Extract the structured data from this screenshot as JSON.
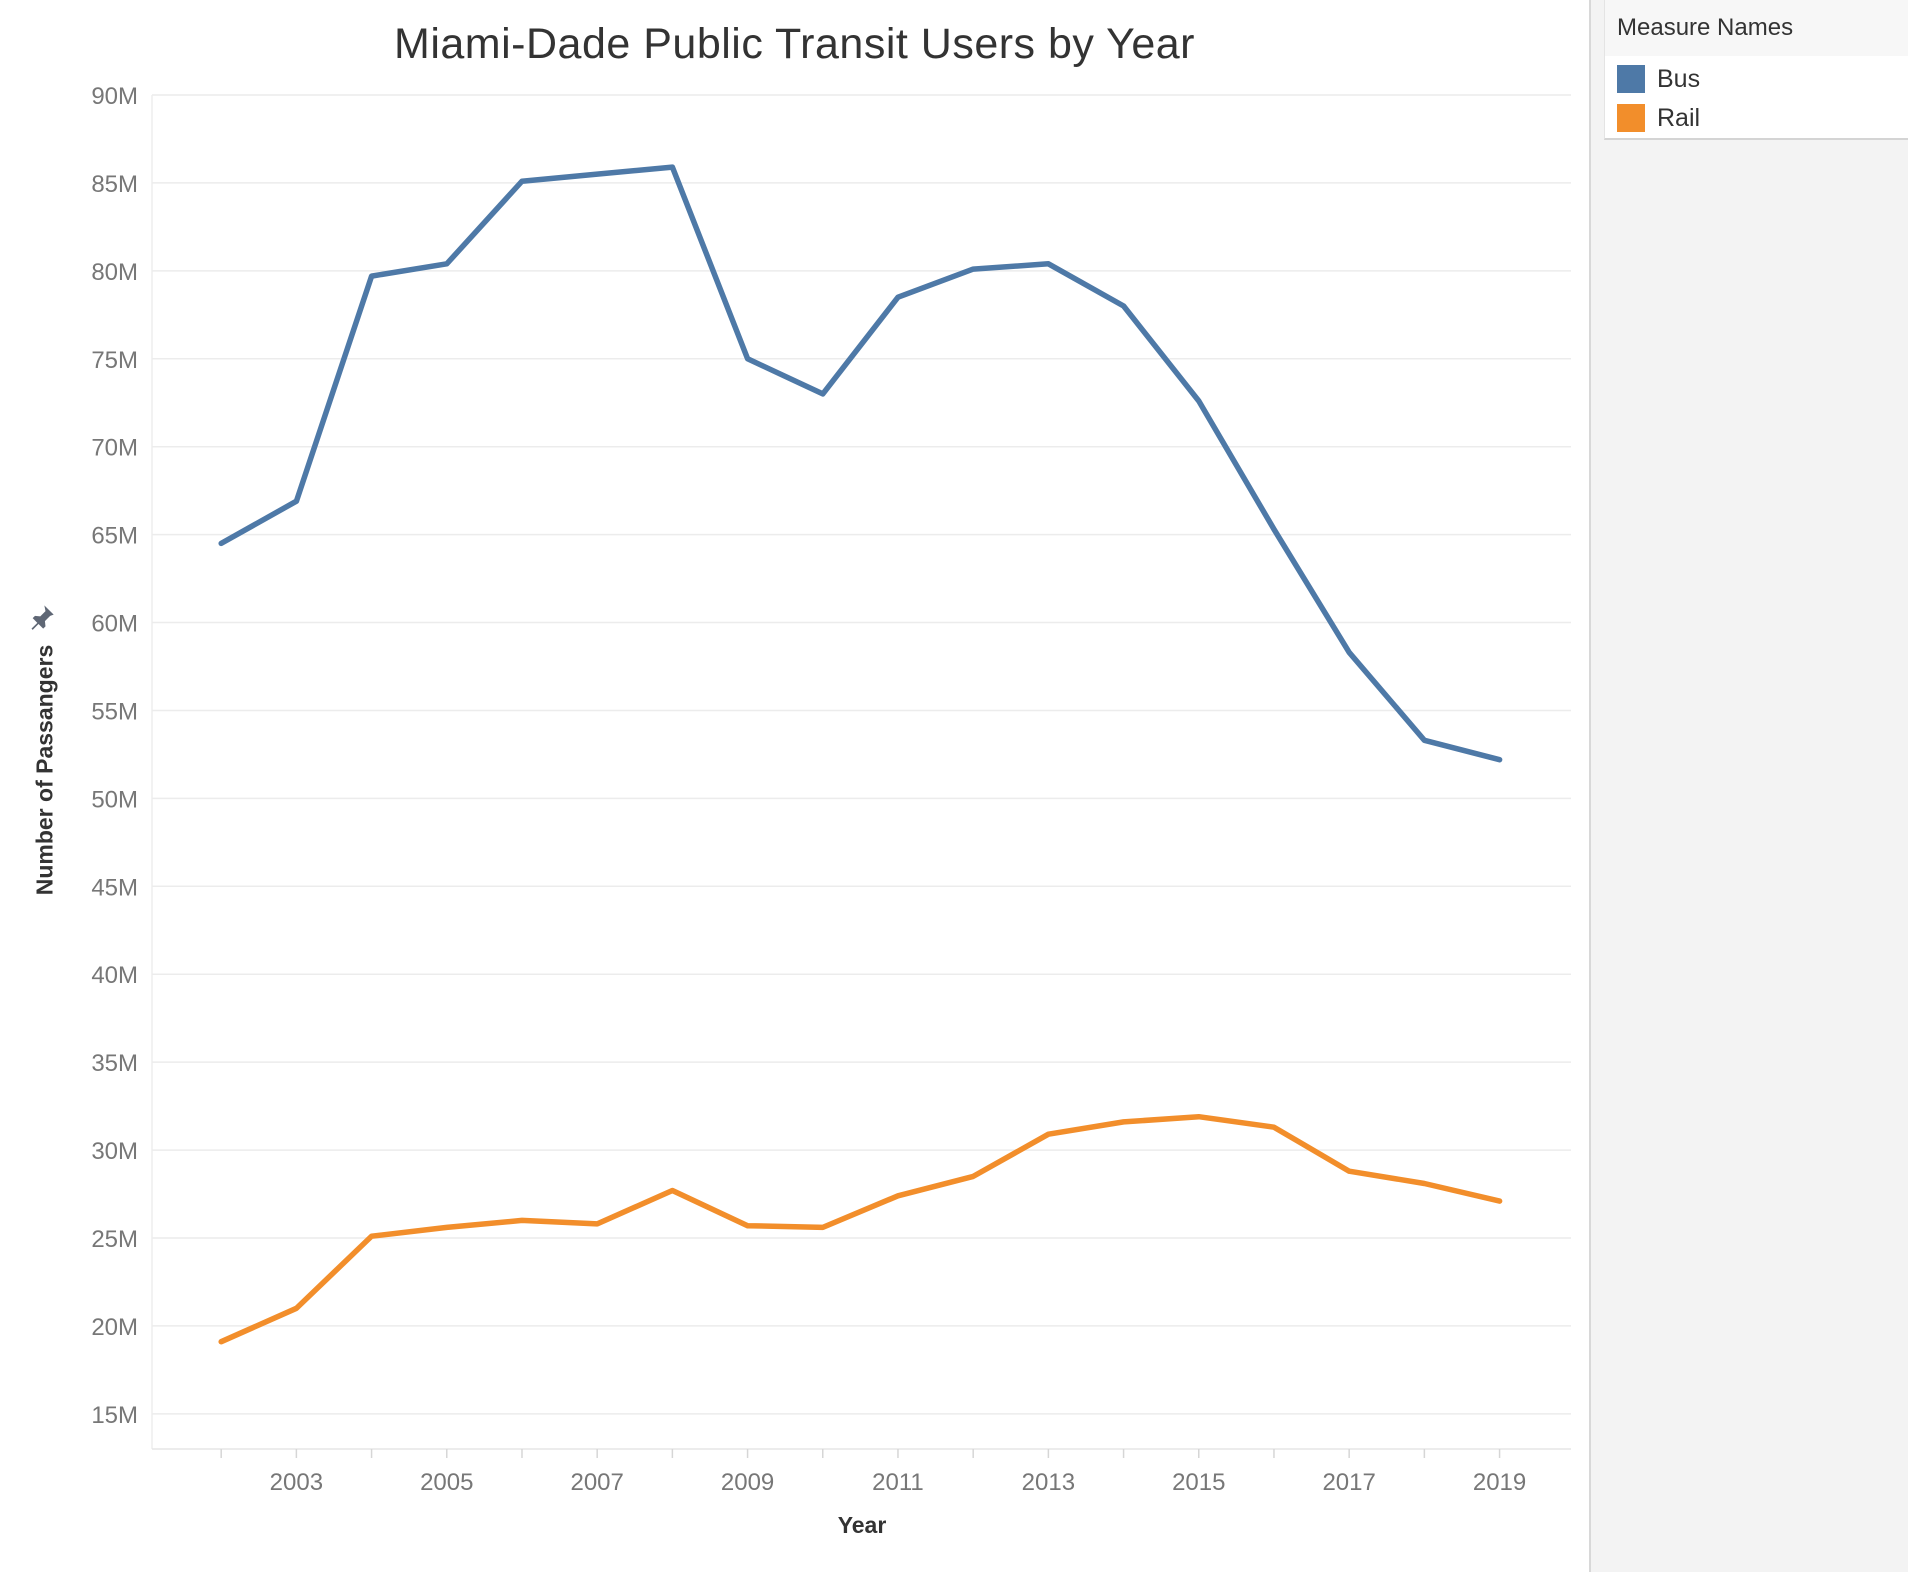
{
  "chart_data": {
    "type": "line",
    "title": "Miami-Dade Public Transit Users by Year",
    "xlabel": "Year",
    "ylabel": "Number of Passangers",
    "x": [
      2002,
      2003,
      2004,
      2005,
      2006,
      2007,
      2008,
      2009,
      2010,
      2011,
      2012,
      2013,
      2014,
      2015,
      2016,
      2017,
      2018,
      2019
    ],
    "x_ticks": [
      "2003",
      "2005",
      "2007",
      "2009",
      "2011",
      "2013",
      "2015",
      "2017",
      "2019"
    ],
    "y_ticks": [
      "15M",
      "20M",
      "25M",
      "30M",
      "35M",
      "40M",
      "45M",
      "50M",
      "55M",
      "60M",
      "65M",
      "70M",
      "75M",
      "80M",
      "85M",
      "90M"
    ],
    "ylim": [
      13000000,
      90000000
    ],
    "grid": "horizontal",
    "legend_position": "right panel",
    "series": [
      {
        "name": "Bus",
        "color": "#4e79a7",
        "values": [
          64500000,
          66900000,
          79700000,
          80400000,
          85100000,
          85500000,
          85900000,
          75000000,
          73000000,
          78500000,
          80100000,
          80400000,
          78000000,
          72600000,
          65300000,
          58300000,
          53300000,
          52200000
        ]
      },
      {
        "name": "Rail",
        "color": "#f28e2b",
        "values": [
          19100000,
          21000000,
          25100000,
          25600000,
          26000000,
          25800000,
          27700000,
          25700000,
          25600000,
          27400000,
          28500000,
          30900000,
          31600000,
          31900000,
          31300000,
          28800000,
          28100000,
          27100000
        ]
      }
    ]
  },
  "legend": {
    "title": "Measure Names",
    "items": [
      {
        "label": "Bus",
        "color": "#4e79a7"
      },
      {
        "label": "Rail",
        "color": "#f28e2b"
      }
    ]
  },
  "icons": {
    "pin": "pin-icon"
  }
}
